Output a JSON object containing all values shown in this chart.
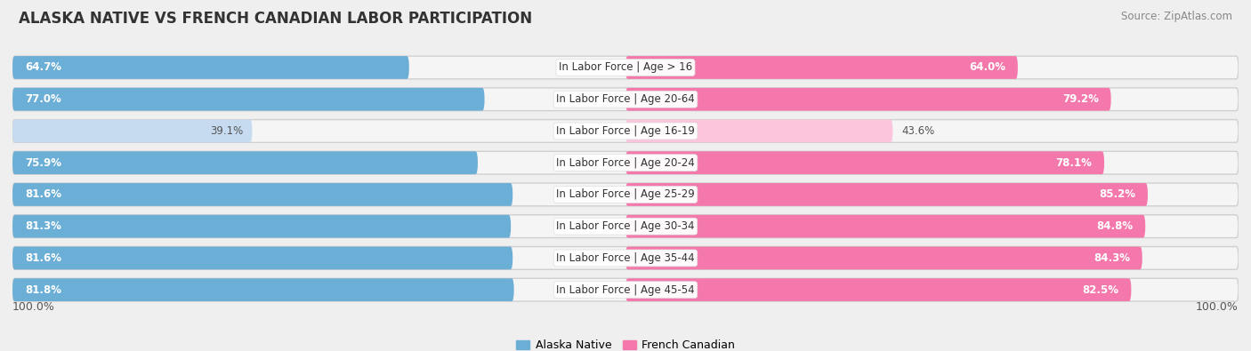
{
  "title": "ALASKA NATIVE VS FRENCH CANADIAN LABOR PARTICIPATION",
  "source": "Source: ZipAtlas.com",
  "categories": [
    "In Labor Force | Age > 16",
    "In Labor Force | Age 20-64",
    "In Labor Force | Age 16-19",
    "In Labor Force | Age 20-24",
    "In Labor Force | Age 25-29",
    "In Labor Force | Age 30-34",
    "In Labor Force | Age 35-44",
    "In Labor Force | Age 45-54"
  ],
  "alaska_values": [
    64.7,
    77.0,
    39.1,
    75.9,
    81.6,
    81.3,
    81.6,
    81.8
  ],
  "french_values": [
    64.0,
    79.2,
    43.6,
    78.1,
    85.2,
    84.8,
    84.3,
    82.5
  ],
  "alaska_color": "#6BAED6",
  "alaska_color_light": "#C6DBEF",
  "french_color": "#F478AB",
  "french_color_light": "#FCC5DC",
  "row_bg_color": "#E8E8E8",
  "row_inner_bg": "#F5F5F5",
  "bg_color": "#EFEFEF",
  "max_value": 100.0,
  "bar_height": 0.72,
  "title_fontsize": 12,
  "label_fontsize": 8.5,
  "val_fontsize": 8.5,
  "tick_fontsize": 9,
  "legend_fontsize": 9,
  "source_fontsize": 8.5
}
